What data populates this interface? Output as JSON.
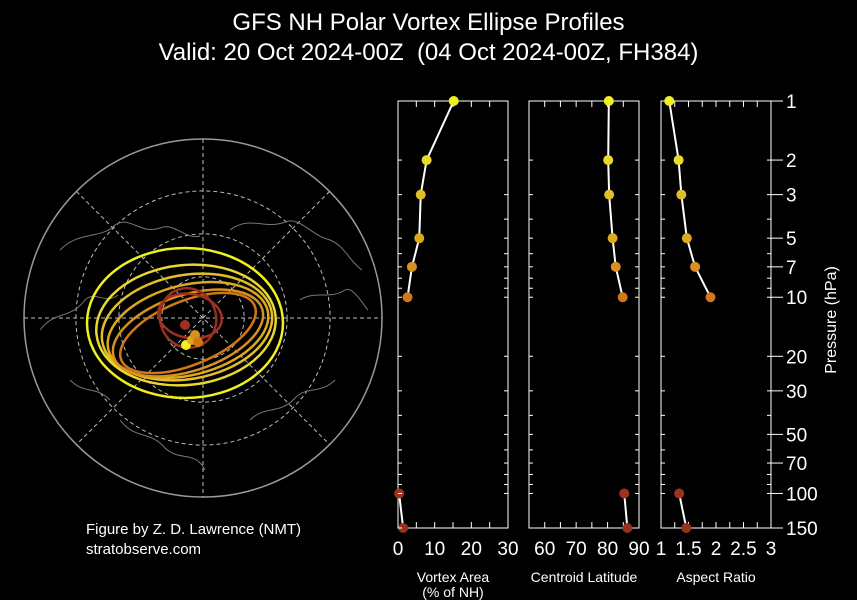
{
  "title": "GFS NH Polar Vortex Ellipse Profiles",
  "subtitle": "Valid: 20 Oct 2024-00Z  (04 Oct 2024-00Z, FH384)",
  "credit": {
    "line1": "Figure by Z. D. Lawrence (NMT)",
    "line2": "stratobserve.com"
  },
  "colors": {
    "background": "#000000",
    "map_ring": "#ffffff",
    "level_colors": {
      "1": "#f0f020",
      "2": "#e8d830",
      "3": "#e0c028",
      "5": "#dca820",
      "7": "#d89020",
      "10": "#d07818",
      "100": "#a03020",
      "150": "#983020"
    }
  },
  "chart_data": [
    {
      "type": "map",
      "description_visible": "polar stereographic NH map with vortex ellipses",
      "projection": "north-polar-stereographic",
      "ellipse_levels_hpa": [
        1,
        2,
        3,
        5,
        7,
        10,
        100,
        150
      ]
    },
    {
      "type": "line",
      "xlabel": "Vortex Area\n(% of NH)",
      "xlabel_lines": [
        "Vortex Area",
        "(% of NH)"
      ],
      "xlim": [
        0,
        30
      ],
      "xticks": [
        0,
        10,
        20,
        30
      ],
      "ylabel": "Pressure (hPa)",
      "ylim": [
        150,
        1
      ],
      "yscale": "log",
      "points": [
        {
          "p": 1,
          "x": 15.2
        },
        {
          "p": 2,
          "x": 7.8
        },
        {
          "p": 3,
          "x": 6.2
        },
        {
          "p": 5,
          "x": 5.8
        },
        {
          "p": 7,
          "x": 3.8
        },
        {
          "p": 10,
          "x": 2.6
        }
      ],
      "lower_points": [
        {
          "p": 100,
          "x": 0.3
        },
        {
          "p": 150,
          "x": 1.4
        }
      ]
    },
    {
      "type": "line",
      "xlabel": "Centroid Latitude",
      "xlim": [
        55,
        90
      ],
      "xticks": [
        60,
        70,
        80,
        90
      ],
      "points": [
        {
          "p": 1,
          "x": 80.4
        },
        {
          "p": 2,
          "x": 80.2
        },
        {
          "p": 3,
          "x": 80.5
        },
        {
          "p": 5,
          "x": 81.6
        },
        {
          "p": 7,
          "x": 82.6
        },
        {
          "p": 10,
          "x": 84.8
        }
      ],
      "lower_points": [
        {
          "p": 100,
          "x": 85.3
        },
        {
          "p": 150,
          "x": 86.3
        }
      ]
    },
    {
      "type": "line",
      "xlabel": "Aspect Ratio",
      "xlim": [
        1,
        3
      ],
      "xticks": [
        1,
        1.5,
        2,
        2.5,
        3
      ],
      "xtick_labels": [
        "1",
        "1.5",
        "2",
        "2.5",
        "3"
      ],
      "points": [
        {
          "p": 1,
          "x": 1.15
        },
        {
          "p": 2,
          "x": 1.32
        },
        {
          "p": 3,
          "x": 1.37
        },
        {
          "p": 5,
          "x": 1.47
        },
        {
          "p": 7,
          "x": 1.62
        },
        {
          "p": 10,
          "x": 1.9
        }
      ],
      "lower_points": [
        {
          "p": 100,
          "x": 1.33
        },
        {
          "p": 150,
          "x": 1.46
        }
      ],
      "yticks": [
        1,
        2,
        3,
        5,
        7,
        10,
        20,
        30,
        50,
        70,
        100,
        150
      ],
      "ylabel": "Pressure (hPa)"
    }
  ]
}
